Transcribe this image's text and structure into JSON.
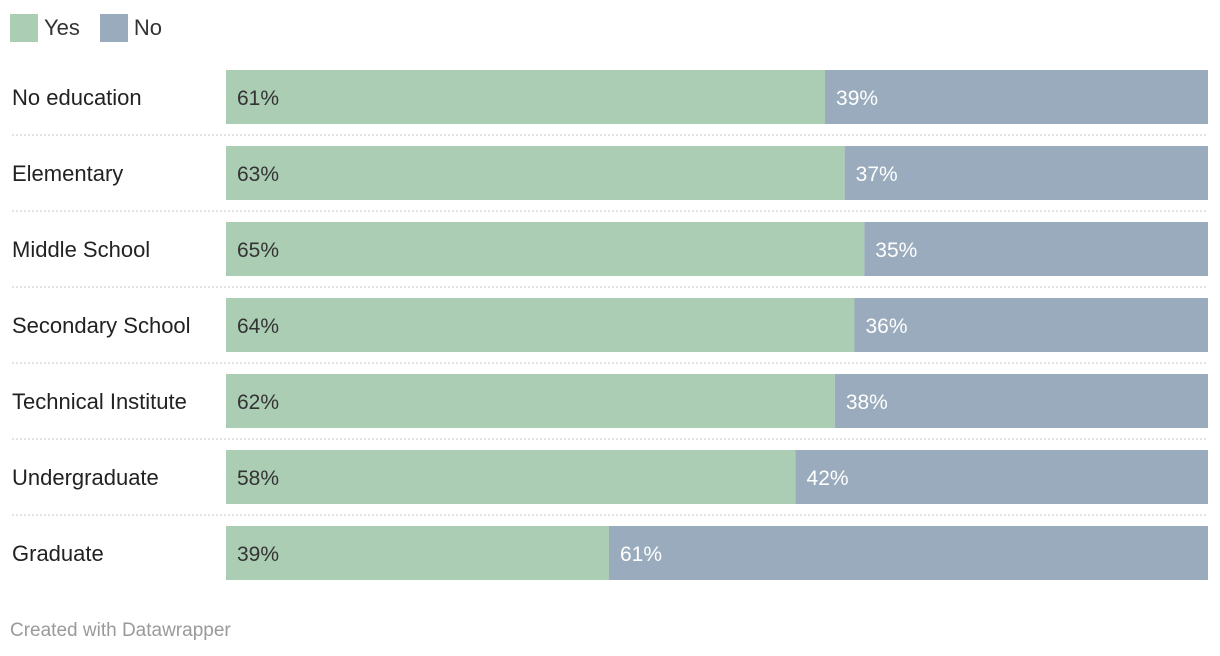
{
  "legend": {
    "items": [
      {
        "label": "Yes",
        "color": "#abcdb4"
      },
      {
        "label": "No",
        "color": "#99abbc"
      }
    ]
  },
  "chart_data": {
    "type": "bar",
    "orientation": "horizontal",
    "stacked": true,
    "value_suffix": "%",
    "categories": [
      "No education",
      "Elementary",
      "Middle School",
      "Secondary School",
      "Technical Institute",
      "Undergraduate",
      "Graduate"
    ],
    "series": [
      {
        "name": "Yes",
        "color": "#abcdb4",
        "label_color": "#333333",
        "values": [
          61,
          63,
          65,
          64,
          62,
          58,
          39
        ]
      },
      {
        "name": "No",
        "color": "#99abbc",
        "label_color": "#ffffff",
        "values": [
          39,
          37,
          35,
          36,
          38,
          42,
          61
        ]
      }
    ],
    "xlim": [
      0,
      100
    ],
    "legend_position": "top-left",
    "grid": false
  },
  "footer": {
    "credit": "Created with Datawrapper"
  }
}
